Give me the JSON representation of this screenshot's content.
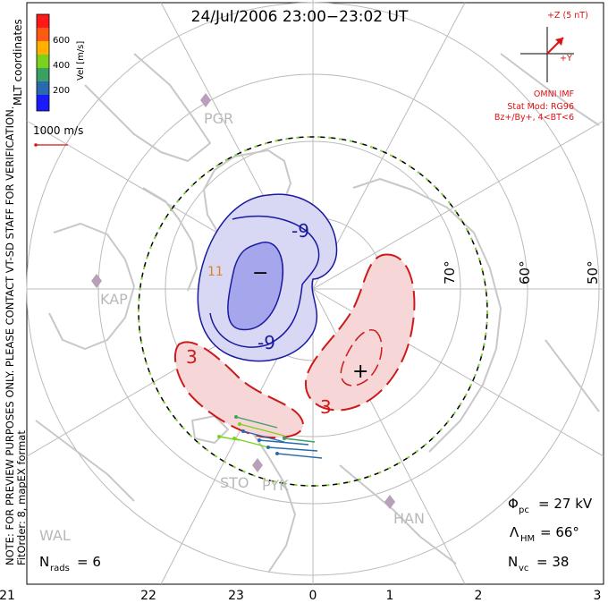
{
  "title": "24/Jul/2006 23:00−23:02 UT",
  "colorbar": {
    "label": "Vel [m/s]",
    "ticks": [
      "600",
      "400",
      "200"
    ],
    "colors": [
      "#ff1a1a",
      "#ff5a14",
      "#ffb000",
      "#7ad21e",
      "#3aa064",
      "#2a6ab0",
      "#1a1aff"
    ]
  },
  "mlt_coordinates": "MLT coordinates",
  "vector_scale_label": "1000 m/s",
  "side_notes": {
    "note": "NOTE: FOR PREVIEW PURPOSES ONLY. PLEASE CONTACT VT-SD STAFF FOR VERIFICATION.",
    "fit_order": "FitOrder: 8, mapEX format"
  },
  "imf": {
    "z_label": "+Z (5 nT)",
    "y_label": "+Y",
    "source": "OMNI IMF",
    "model": "Stat Mod: RG96",
    "condition": "Bz+/By+, 4<BT<6"
  },
  "stations": [
    "PGR",
    "KAP",
    "STO",
    "PYK",
    "HAN",
    "WAL"
  ],
  "latitude_labels": [
    "70°",
    "60°",
    "50°"
  ],
  "contour_labels": [
    "-9",
    "-9",
    "3",
    "3",
    "11"
  ],
  "extremum_marks": [
    "−",
    "+"
  ],
  "stats": {
    "phi_symbol": "Φ",
    "phi_sub": "pc",
    "phi_value": "= 27 kV",
    "lambda_symbol": "Λ",
    "lambda_sub": "HM",
    "lambda_value": "= 66°",
    "nvc_symbol": "N",
    "nvc_sub": "vc",
    "nvc_value": "= 38",
    "nrads_symbol": "N",
    "nrads_sub": "rads",
    "nrads_value": "= 6"
  },
  "mlt_axis": [
    "21",
    "22",
    "23",
    "0",
    "1",
    "2",
    "3"
  ],
  "colors": {
    "frame": "#000000",
    "grid": "#bbbbbb",
    "coast": "#c8c8c8",
    "negative_cell": "#c8c8f0",
    "negative_line": "#1a1aa0",
    "positive_cell": "#f6d4d4",
    "positive_line": "#cc1a1a",
    "hm_boundary": "#8ad23a",
    "imf_red": "#dd1111",
    "station": "#b8a0b8"
  }
}
